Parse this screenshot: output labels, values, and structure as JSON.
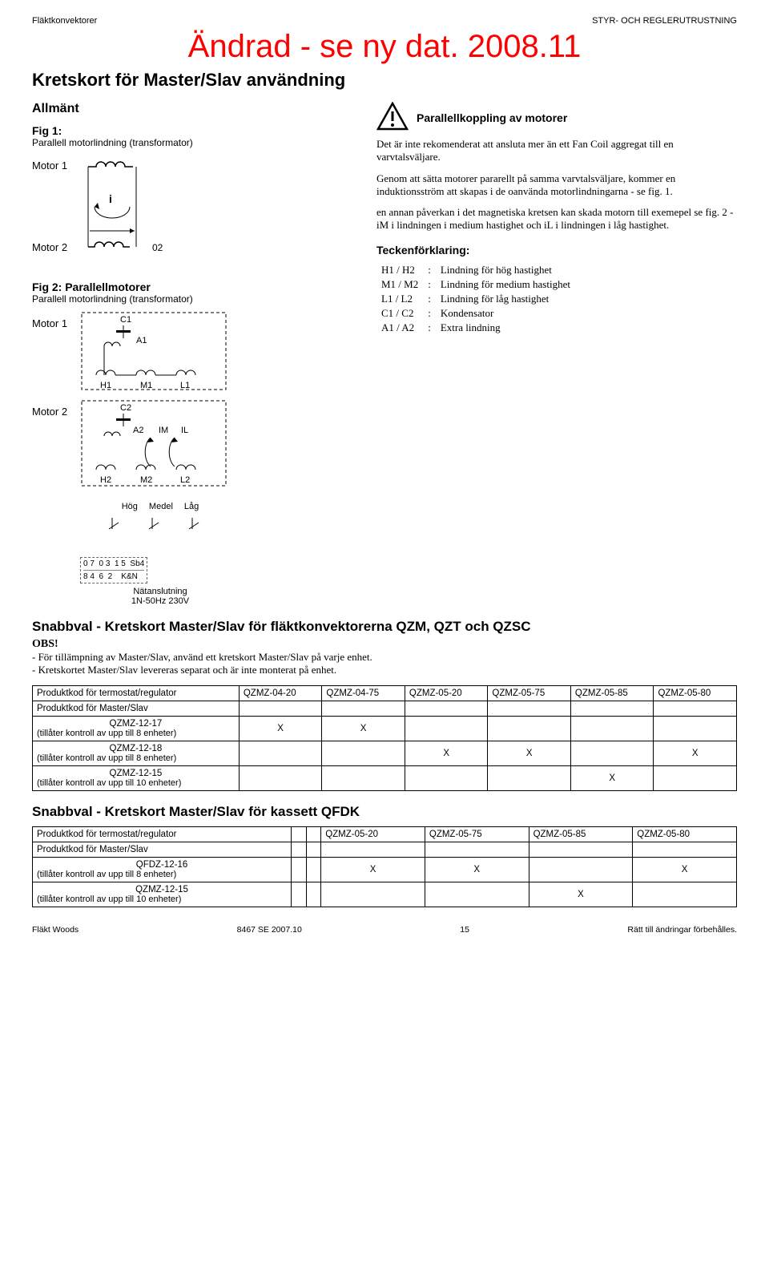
{
  "header": {
    "left": "Fläktkonvektorer",
    "right": "STYR- OCH REGLERUTRUSTNING"
  },
  "red_title": "Ändrad - se ny dat. 2008.11",
  "page_title": "Kretskort för Master/Slav användning",
  "allmant": "Allmänt",
  "fig1": {
    "label": "Fig 1:",
    "sub": "Parallell motorlindning (transformator)",
    "motor1": "Motor 1",
    "motor2": "Motor 2",
    "i": "i",
    "o2": "02"
  },
  "fig2": {
    "label": "Fig 2: Parallellmotorer",
    "sub": "Parallell motorlindning (transformator)",
    "motor1": "Motor 1",
    "motor2": "Motor 2",
    "c1": "C1",
    "a1": "A1",
    "h1": "H1",
    "m1": "M1",
    "l1": "L1",
    "c2": "C2",
    "a2": "A2",
    "im": "IM",
    "il": "IL",
    "h2": "H2",
    "m2": "M2",
    "l2": "L2",
    "hog": "Hög",
    "medel": "Medel",
    "lag": "Låg",
    "sb4": "Sb4",
    "kn": "K&N",
    "row_top": [
      "0",
      "7",
      "0",
      "3",
      "1",
      "5"
    ],
    "row_bot": [
      "8",
      "4",
      "6",
      "2"
    ],
    "net": "Nätanslutning\n1N-50Hz 230V"
  },
  "warning": {
    "title": "Parallellkoppling av motorer",
    "body1": "Det är inte rekomenderat att ansluta mer än ett Fan Coil aggregat till en varvtalsväljare.",
    "body2": "Genom att sätta motorer pararellt på samma varvtalsväljare, kommer en induktionsström att skapas i de oanvända motorlindningarna - se fig. 1.",
    "body3": "en annan påverkan i det magnetiska kretsen kan skada motorn till exemepel se fig. 2 - iM i lindningen i medium hastighet och iL i lindningen i låg hastighet."
  },
  "legend": {
    "heading": "Teckenförklaring:",
    "rows": [
      {
        "k": "H1 / H2",
        "v": "Lindning för hög hastighet"
      },
      {
        "k": "M1 / M2",
        "v": "Lindning för medium hastighet"
      },
      {
        "k": "L1 / L2",
        "v": "Lindning för låg hastighet"
      },
      {
        "k": "C1 / C2",
        "v": "Kondensator"
      },
      {
        "k": "A1 / A2",
        "v": "Extra lindning"
      }
    ]
  },
  "snabbval1": {
    "heading": "Snabbval - Kretskort Master/Slav för fläktkonvektorerna QZM, QZT och QZSC",
    "obs": "OBS!",
    "note1": "- För tillämpning av Master/Slav, använd ett kretskort Master/Slav på varje enhet.",
    "note2": "- Kretskortet Master/Slav levereras separat och är inte monterat på enhet.",
    "col_head": "Produktkod för termostat/regulator",
    "cols": [
      "QZMZ-04-20",
      "QZMZ-04-75",
      "QZMZ-05-20",
      "QZMZ-05-75",
      "QZMZ-05-85",
      "QZMZ-05-80"
    ],
    "row_head2": "Produktkod för Master/Slav",
    "rows": [
      {
        "label": "QZMZ-12-17",
        "sub": "(tillåter kontroll av upp till 8 enheter)",
        "vals": [
          "X",
          "X",
          "",
          "",
          "",
          ""
        ]
      },
      {
        "label": "QZMZ-12-18",
        "sub": "(tillåter kontroll av upp till 8 enheter)",
        "vals": [
          "",
          "",
          "X",
          "X",
          "",
          "X"
        ]
      },
      {
        "label": "QZMZ-12-15",
        "sub": "(tillåter kontroll av upp till 10 enheter)",
        "vals": [
          "",
          "",
          "",
          "",
          "X",
          ""
        ]
      }
    ]
  },
  "snabbval2": {
    "heading": "Snabbval - Kretskort Master/Slav för kassett QFDK",
    "col_head": "Produktkod för termostat/regulator",
    "cols": [
      "QZMZ-05-20",
      "QZMZ-05-75",
      "QZMZ-05-85",
      "QZMZ-05-80"
    ],
    "row_head2": "Produktkod för Master/Slav",
    "rows": [
      {
        "label": "QFDZ-12-16",
        "sub": "(tillåter kontroll av upp till 8 enheter)",
        "vals": [
          "X",
          "X",
          "",
          "X"
        ]
      },
      {
        "label": "QZMZ-12-15",
        "sub": "(tillåter kontroll av upp till 10 enheter)",
        "vals": [
          "",
          "",
          "X",
          ""
        ]
      }
    ]
  },
  "footer": {
    "left": "Fläkt Woods",
    "center": "8467 SE 2007.10",
    "page": "15",
    "right": "Rätt till ändringar förbehålles."
  },
  "colors": {
    "red": "#ff0000",
    "border": "#000000"
  }
}
